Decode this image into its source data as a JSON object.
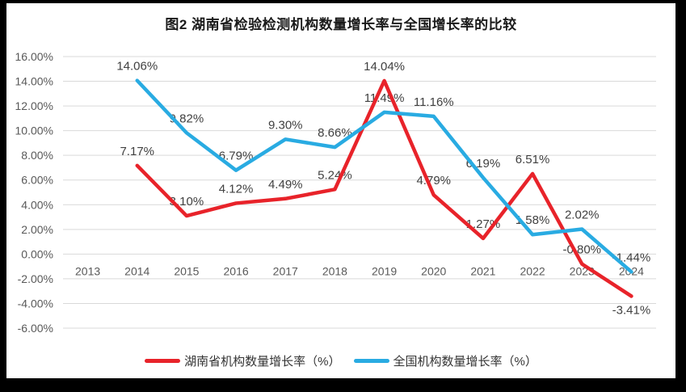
{
  "title": "图2 湖南省检验检测机构数量增长率与全国增长率的比较",
  "chart_data": {
    "type": "line",
    "categories": [
      "2013",
      "2014",
      "2015",
      "2016",
      "2017",
      "2018",
      "2019",
      "2020",
      "2021",
      "2022",
      "2023",
      "2024"
    ],
    "series": [
      {
        "name": "湖南省机构数量增长率（%）",
        "color": "#e8232a",
        "values": [
          null,
          7.17,
          3.1,
          4.12,
          4.49,
          5.24,
          14.04,
          4.79,
          1.27,
          6.51,
          -0.8,
          -3.41
        ],
        "label_below_indices": [
          11
        ]
      },
      {
        "name": "全国机构数量增长率（%）",
        "color": "#29abe2",
        "values": [
          null,
          14.06,
          9.82,
          6.79,
          9.3,
          8.66,
          11.49,
          11.16,
          6.19,
          1.58,
          2.02,
          -1.44
        ],
        "label_below_indices": []
      }
    ],
    "ylim": [
      -6,
      16
    ],
    "ytick_step": 2,
    "ytick_suffix": "%",
    "grid": true,
    "legend_position": "bottom"
  }
}
